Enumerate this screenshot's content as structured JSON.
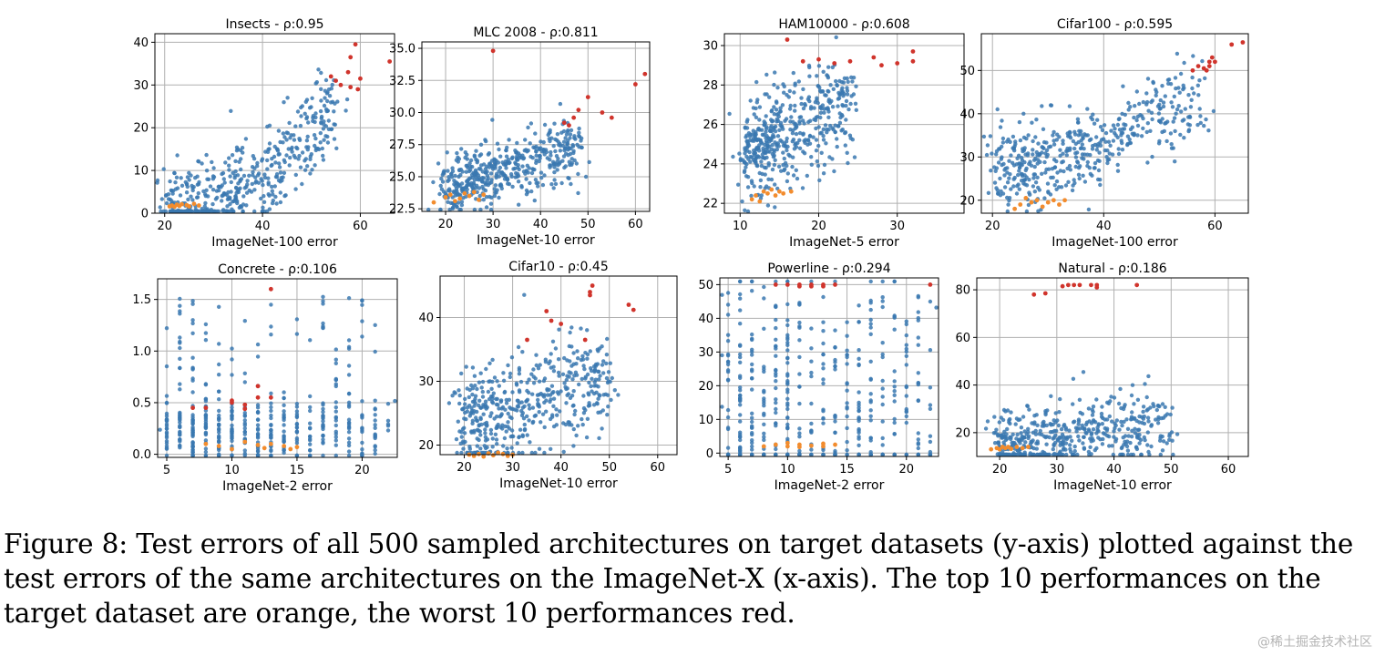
{
  "caption": "Figure 8: Test errors of all 500 sampled architectures on target datasets (y-axis) plotted against the test errors of the same architectures on the ImageNet-X (x-axis). The top 10 performances on the target dataset are orange, the worst 10 performances red.",
  "watermark": "@稀土掘金技术社区",
  "colors": {
    "main": "#3a78b0",
    "best": "#f28c2e",
    "worst": "#d0342c",
    "grid": "#b0b0b0"
  },
  "chart_data": [
    {
      "type": "scatter",
      "title": "Insects - ρ:0.95",
      "xlabel": "ImageNet-100 error",
      "ylabel": "",
      "xlim": [
        18,
        67
      ],
      "ylim": [
        0,
        42
      ],
      "xticks": [
        20,
        40,
        60
      ],
      "yticks": [
        0,
        10,
        20,
        30,
        40
      ],
      "cluster": {
        "x0": 21,
        "y0": 1.9,
        "x1": 55,
        "y1": 26,
        "curve": 2.2,
        "spread": 0.12
      },
      "best": [
        [
          21,
          1.6
        ],
        [
          21.5,
          1.8
        ],
        [
          22,
          1.5
        ],
        [
          22.5,
          2
        ],
        [
          23,
          1.7
        ],
        [
          23.5,
          2.1
        ],
        [
          24.5,
          1.9
        ],
        [
          25,
          1.6
        ],
        [
          26,
          2.2
        ],
        [
          27,
          1.8
        ]
      ],
      "worst": [
        [
          54,
          32
        ],
        [
          55,
          31
        ],
        [
          56,
          30
        ],
        [
          57.5,
          33
        ],
        [
          58,
          36.5
        ],
        [
          59,
          39.5
        ],
        [
          58,
          29.5
        ],
        [
          59.5,
          29
        ],
        [
          60,
          31.5
        ],
        [
          66,
          35.5
        ]
      ]
    },
    {
      "type": "scatter",
      "title": "MLC 2008 - ρ:0.811",
      "xlabel": "ImageNet-10 error",
      "ylabel": "",
      "xlim": [
        15,
        63
      ],
      "ylim": [
        22.3,
        35.5
      ],
      "xticks": [
        20,
        30,
        40,
        50,
        60
      ],
      "yticks": [
        22.5,
        25.0,
        27.5,
        30.0,
        32.5,
        35.0
      ],
      "cluster": {
        "x0": 20,
        "y0": 24,
        "x1": 48,
        "y1": 27.5,
        "curve": 1,
        "spread": 0.09
      },
      "best": [
        [
          17.5,
          23
        ],
        [
          20,
          23.4
        ],
        [
          21,
          23.6
        ],
        [
          22,
          23.1
        ],
        [
          23,
          23.3
        ],
        [
          24,
          23.7
        ],
        [
          25,
          23.5
        ],
        [
          26,
          23.8
        ],
        [
          27,
          23.2
        ],
        [
          28,
          23.6
        ]
      ],
      "worst": [
        [
          30,
          34.8
        ],
        [
          45,
          29.2
        ],
        [
          46,
          29
        ],
        [
          47,
          29.6
        ],
        [
          48,
          30.2
        ],
        [
          50,
          31.2
        ],
        [
          53,
          30
        ],
        [
          55,
          29.6
        ],
        [
          60,
          32.2
        ],
        [
          62,
          33
        ]
      ]
    },
    {
      "type": "scatter",
      "title": "HAM10000 - ρ:0.608",
      "xlabel": "ImageNet-5 error",
      "ylabel": "",
      "xlim": [
        8,
        38.5
      ],
      "ylim": [
        21.5,
        30.6
      ],
      "xticks": [
        10,
        20,
        30
      ],
      "yticks": [
        22,
        24,
        26,
        28,
        30
      ],
      "cluster": {
        "x0": 11,
        "y0": 24.5,
        "x1": 24,
        "y1": 27.2,
        "curve": 1,
        "spread": 0.14
      },
      "best": [
        [
          11.5,
          22.2
        ],
        [
          12,
          22.4
        ],
        [
          12.5,
          22.1
        ],
        [
          13,
          22.6
        ],
        [
          13.5,
          22.5
        ],
        [
          14,
          22.7
        ],
        [
          14.5,
          22.4
        ],
        [
          15,
          22.6
        ],
        [
          15.5,
          22.5
        ],
        [
          16.5,
          22.6
        ]
      ],
      "worst": [
        [
          16,
          30.3
        ],
        [
          18,
          29.2
        ],
        [
          20,
          29.3
        ],
        [
          22,
          29.1
        ],
        [
          24,
          29.2
        ],
        [
          27,
          29.4
        ],
        [
          28,
          29
        ],
        [
          30,
          29.1
        ],
        [
          32,
          29.2
        ],
        [
          32,
          29.7
        ]
      ]
    },
    {
      "type": "scatter",
      "title": "Cifar100 - ρ:0.595",
      "xlabel": "ImageNet-100 error",
      "ylabel": "",
      "xlim": [
        18,
        66
      ],
      "ylim": [
        17,
        58.5
      ],
      "xticks": [
        20,
        40,
        60
      ],
      "yticks": [
        20,
        30,
        40,
        50
      ],
      "cluster": {
        "x0": 21,
        "y0": 27,
        "x1": 57,
        "y1": 45,
        "curve": 1.6,
        "spread": 0.12
      },
      "best": [
        [
          24,
          18
        ],
        [
          25,
          19
        ],
        [
          26,
          20.5
        ],
        [
          27,
          19.5
        ],
        [
          28,
          20
        ],
        [
          29,
          18.5
        ],
        [
          30,
          19.5
        ],
        [
          31,
          20
        ],
        [
          32,
          19
        ],
        [
          33,
          20
        ]
      ],
      "worst": [
        [
          56,
          50
        ],
        [
          57,
          51
        ],
        [
          58,
          50.5
        ],
        [
          58.5,
          50
        ],
        [
          59,
          51
        ],
        [
          59,
          52
        ],
        [
          59.5,
          53
        ],
        [
          60,
          52
        ],
        [
          63,
          56
        ],
        [
          65,
          56.5
        ]
      ]
    },
    {
      "type": "scatter",
      "title": "Concrete - ρ:0.106",
      "xlabel": "ImageNet-2 error",
      "ylabel": "",
      "xlim": [
        4.3,
        22.7
      ],
      "ylim": [
        -0.03,
        1.7
      ],
      "xticks": [
        5,
        10,
        15,
        20
      ],
      "yticks": [
        0.0,
        0.5,
        1.0,
        1.5
      ],
      "cluster": {
        "x0": 5,
        "y0": 0.22,
        "x1": 22,
        "y1": 0.24,
        "curve": 1,
        "spread": 0.08,
        "column": true
      },
      "best": [
        [
          8,
          0.1
        ],
        [
          9,
          0.08
        ],
        [
          10,
          0.05
        ],
        [
          11,
          0.12
        ],
        [
          12,
          0.09
        ],
        [
          12.5,
          0.06
        ],
        [
          13,
          0.1
        ],
        [
          14,
          0.08
        ],
        [
          14.5,
          0.05
        ],
        [
          15,
          0.07
        ]
      ],
      "worst": [
        [
          7,
          0.45
        ],
        [
          8,
          0.45
        ],
        [
          10,
          0.52
        ],
        [
          10,
          0.5
        ],
        [
          11,
          0.48
        ],
        [
          11,
          0.44
        ],
        [
          12,
          0.66
        ],
        [
          12,
          0.55
        ],
        [
          13,
          0.55
        ],
        [
          13,
          1.6
        ]
      ]
    },
    {
      "type": "scatter",
      "title": "Cifar10 - ρ:0.45",
      "xlabel": "ImageNet-10 error",
      "ylabel": "",
      "xlim": [
        15,
        64
      ],
      "ylim": [
        18.5,
        46.5
      ],
      "xticks": [
        20,
        30,
        40,
        50,
        60
      ],
      "yticks": [
        20,
        30,
        40
      ],
      "cluster": {
        "x0": 20,
        "y0": 23,
        "x1": 50,
        "y1": 31,
        "curve": 1,
        "spread": 0.15
      },
      "best": [
        [
          21,
          18.5
        ],
        [
          22,
          18.3
        ],
        [
          23,
          18.6
        ],
        [
          24,
          18.2
        ],
        [
          25,
          18.7
        ],
        [
          26,
          18.4
        ],
        [
          27,
          18.8
        ],
        [
          28,
          18.6
        ],
        [
          29,
          18.3
        ],
        [
          30,
          18.5
        ]
      ],
      "worst": [
        [
          33,
          36.5
        ],
        [
          37,
          41
        ],
        [
          38,
          39.5
        ],
        [
          40,
          39
        ],
        [
          45,
          36.5
        ],
        [
          46,
          43.5
        ],
        [
          46,
          44
        ],
        [
          46.5,
          45
        ],
        [
          54,
          42
        ],
        [
          55,
          41.2
        ]
      ]
    },
    {
      "type": "scatter",
      "title": "Powerline - ρ:0.294",
      "xlabel": "ImageNet-2 error",
      "ylabel": "",
      "xlim": [
        4.3,
        22.7
      ],
      "ylim": [
        -1,
        52
      ],
      "xticks": [
        5,
        10,
        15,
        20
      ],
      "yticks": [
        0,
        10,
        20,
        30,
        40,
        50
      ],
      "cluster": {
        "x0": 5,
        "y0": 10,
        "x1": 22,
        "y1": 15,
        "curve": 1,
        "spread": 0.35,
        "column": true
      },
      "best": [
        [
          8,
          2
        ],
        [
          9,
          2.5
        ],
        [
          10,
          2
        ],
        [
          10,
          3
        ],
        [
          11,
          2.5
        ],
        [
          11,
          1.8
        ],
        [
          12,
          2.2
        ],
        [
          13,
          2.8
        ],
        [
          13,
          2
        ],
        [
          14,
          2.5
        ]
      ],
      "worst": [
        [
          9,
          50
        ],
        [
          10,
          50
        ],
        [
          11,
          50
        ],
        [
          11,
          49.5
        ],
        [
          12,
          50
        ],
        [
          12,
          49.5
        ],
        [
          13,
          50
        ],
        [
          13,
          49.5
        ],
        [
          14,
          50
        ],
        [
          22,
          50
        ]
      ]
    },
    {
      "type": "scatter",
      "title": "Natural - ρ:0.186",
      "xlabel": "ImageNet-10 error",
      "ylabel": "",
      "xlim": [
        16,
        63.5
      ],
      "ylim": [
        10,
        85
      ],
      "xticks": [
        20,
        30,
        40,
        50,
        60
      ],
      "yticks": [
        20,
        40,
        60,
        80
      ],
      "cluster": {
        "x0": 20,
        "y0": 16,
        "x1": 50,
        "y1": 24,
        "curve": 1.5,
        "spread": 0.1
      },
      "best": [
        [
          18.5,
          13
        ],
        [
          19.5,
          13.5
        ],
        [
          20,
          13
        ],
        [
          20.5,
          14
        ],
        [
          21,
          13.5
        ],
        [
          21.5,
          14
        ],
        [
          22,
          13.2
        ],
        [
          23,
          14
        ],
        [
          24,
          13.5
        ],
        [
          25,
          14
        ]
      ],
      "worst": [
        [
          26,
          78
        ],
        [
          28,
          78.5
        ],
        [
          31,
          81.5
        ],
        [
          32,
          82
        ],
        [
          33,
          82
        ],
        [
          34,
          82
        ],
        [
          36,
          82
        ],
        [
          37,
          81
        ],
        [
          37,
          82
        ],
        [
          44,
          82
        ]
      ]
    }
  ]
}
